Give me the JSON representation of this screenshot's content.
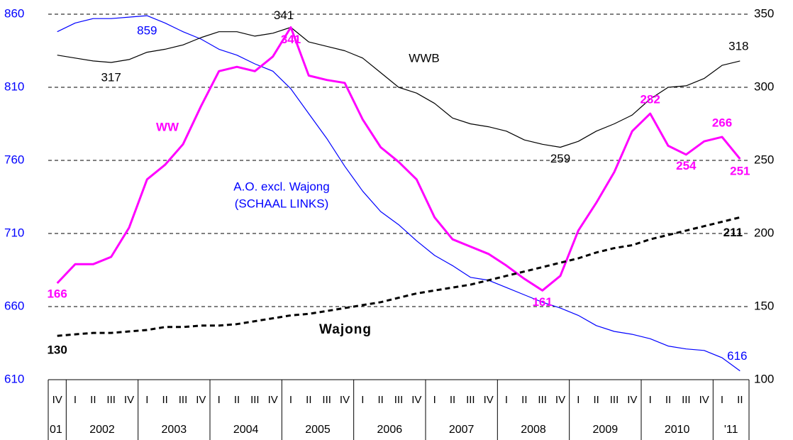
{
  "chart_data": {
    "type": "line",
    "category_groups": [
      {
        "label": "01",
        "categories": [
          "IV"
        ]
      },
      {
        "label": "2002",
        "categories": [
          "I",
          "II",
          "III",
          "IV"
        ]
      },
      {
        "label": "2003",
        "categories": [
          "I",
          "II",
          "III",
          "IV"
        ]
      },
      {
        "label": "2004",
        "categories": [
          "I",
          "II",
          "III",
          "IV"
        ]
      },
      {
        "label": "2005",
        "categories": [
          "I",
          "II",
          "III",
          "IV"
        ]
      },
      {
        "label": "2006",
        "categories": [
          "I",
          "II",
          "III",
          "IV"
        ]
      },
      {
        "label": "2007",
        "categories": [
          "I",
          "II",
          "III",
          "IV"
        ]
      },
      {
        "label": "2008",
        "categories": [
          "I",
          "II",
          "III",
          "IV"
        ]
      },
      {
        "label": "2009",
        "categories": [
          "I",
          "II",
          "III",
          "IV"
        ]
      },
      {
        "label": "2010",
        "categories": [
          "I",
          "II",
          "III",
          "IV"
        ]
      },
      {
        "label": "'11",
        "categories": [
          "I",
          "II"
        ]
      }
    ],
    "ylim": [
      610,
      860
    ],
    "yticks": [
      610,
      660,
      710,
      760,
      810,
      860
    ],
    "y2lim": [
      100,
      350
    ],
    "y2ticks": [
      100,
      150,
      200,
      250,
      300,
      350
    ],
    "grid": true,
    "series": [
      {
        "name": "A.O. excl. Wajong",
        "note": "(SCHAAL LINKS)",
        "color": "#0000ff",
        "axis": "y",
        "style": "solid",
        "width": 1.2,
        "label_bold": false,
        "values": [
          848,
          854,
          857,
          857,
          858,
          859,
          854,
          848,
          843,
          836,
          832,
          826,
          821,
          809,
          792,
          775,
          756,
          739,
          725,
          716,
          705,
          695,
          688,
          680,
          678,
          673,
          668,
          663,
          659,
          654,
          647,
          643,
          641,
          638,
          633,
          631,
          630,
          625,
          616
        ],
        "value_labels": [
          null,
          null,
          null,
          null,
          null,
          "859",
          null,
          null,
          null,
          null,
          null,
          null,
          null,
          null,
          null,
          null,
          null,
          null,
          null,
          null,
          null,
          null,
          null,
          null,
          null,
          null,
          null,
          null,
          null,
          null,
          null,
          null,
          null,
          null,
          null,
          null,
          null,
          null,
          "616"
        ]
      },
      {
        "name": "WWB",
        "color": "#000000",
        "axis": "y2",
        "style": "solid",
        "width": 1.2,
        "label_bold": false,
        "values": [
          322,
          320,
          318,
          317,
          319,
          324,
          326,
          329,
          334,
          338,
          338,
          335,
          337,
          341,
          331,
          328,
          325,
          320,
          310,
          300,
          296,
          289,
          279,
          275,
          273,
          270,
          264,
          261,
          259,
          263,
          270,
          275,
          281,
          292,
          300,
          301,
          306,
          315,
          318
        ],
        "value_labels": [
          null,
          null,
          null,
          "317",
          null,
          null,
          null,
          null,
          null,
          null,
          null,
          null,
          null,
          "341",
          null,
          null,
          null,
          null,
          null,
          null,
          null,
          null,
          null,
          null,
          null,
          null,
          null,
          null,
          "259",
          null,
          null,
          null,
          null,
          null,
          null,
          null,
          null,
          null,
          "318"
        ]
      },
      {
        "name": "WW",
        "color": "#ff00ff",
        "axis": "y2",
        "style": "solid",
        "width": 3,
        "label_bold": true,
        "values": [
          166,
          179,
          179,
          184,
          204,
          237,
          247,
          261,
          287,
          311,
          314,
          311,
          321,
          341,
          308,
          305,
          303,
          278,
          259,
          249,
          237,
          211,
          196,
          191,
          186,
          178,
          169,
          161,
          171,
          202,
          221,
          242,
          270,
          282,
          260,
          254,
          263,
          266,
          251
        ],
        "value_labels": [
          "166",
          null,
          null,
          null,
          null,
          null,
          null,
          null,
          null,
          null,
          null,
          null,
          null,
          "341",
          null,
          null,
          null,
          null,
          null,
          null,
          null,
          null,
          null,
          null,
          null,
          null,
          null,
          "161",
          null,
          null,
          null,
          null,
          null,
          "282",
          null,
          "254",
          null,
          "266",
          "251"
        ]
      },
      {
        "name": "Wajong",
        "color": "#000000",
        "axis": "y2",
        "style": "dashed",
        "width": 3,
        "label_bold": true,
        "values": [
          130,
          131,
          132,
          132,
          133,
          134,
          136,
          136,
          137,
          137,
          138,
          140,
          142,
          144,
          145,
          147,
          149,
          151,
          153,
          156,
          159,
          161,
          163,
          165,
          168,
          171,
          174,
          177,
          180,
          183,
          187,
          190,
          192,
          196,
          199,
          202,
          205,
          208,
          211
        ],
        "value_labels": [
          "130",
          null,
          null,
          null,
          null,
          null,
          null,
          null,
          null,
          null,
          null,
          null,
          null,
          null,
          null,
          null,
          null,
          null,
          null,
          null,
          null,
          null,
          null,
          null,
          null,
          null,
          null,
          null,
          null,
          null,
          null,
          null,
          null,
          null,
          null,
          null,
          null,
          null,
          "211"
        ]
      }
    ]
  }
}
